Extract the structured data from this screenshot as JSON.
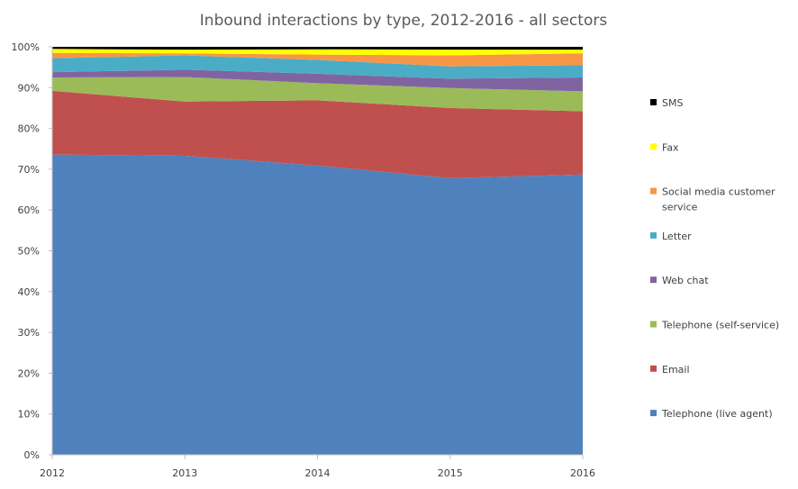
{
  "chart_data": {
    "type": "area",
    "stacked": true,
    "title": "Inbound interactions by type, 2012-2016 - all sectors",
    "x": [
      "2012",
      "2013",
      "2014",
      "2015",
      "2016"
    ],
    "y_tick_labels": [
      "0%",
      "10%",
      "20%",
      "30%",
      "40%",
      "50%",
      "60%",
      "70%",
      "80%",
      "90%",
      "100%"
    ],
    "ylim": [
      0,
      100
    ],
    "grid": false,
    "legend_position": "right",
    "series": [
      {
        "name": "Telephone (live agent)",
        "color": "#4f81bd",
        "values": [
          73.6,
          73.3,
          70.9,
          67.8,
          68.7
        ]
      },
      {
        "name": "Email",
        "color": "#c0504d",
        "values": [
          15.6,
          13.3,
          16.0,
          17.2,
          15.5
        ]
      },
      {
        "name": "Telephone (self-service)",
        "color": "#9bbb59",
        "values": [
          3.3,
          6.0,
          4.2,
          4.9,
          4.9
        ]
      },
      {
        "name": "Web chat",
        "color": "#8064a2",
        "values": [
          1.3,
          1.8,
          2.3,
          2.3,
          3.4
        ]
      },
      {
        "name": "Letter",
        "color": "#4bacc6",
        "values": [
          3.4,
          3.5,
          3.4,
          3.0,
          3.0
        ]
      },
      {
        "name": "Social media customer service",
        "color": "#f79646",
        "values": [
          1.3,
          0.5,
          1.3,
          2.7,
          2.9
        ]
      },
      {
        "name": "Fax",
        "color": "#ffff00",
        "values": [
          1.0,
          0.9,
          1.3,
          1.4,
          0.9
        ]
      },
      {
        "name": "SMS",
        "color": "#000000",
        "values": [
          0.5,
          0.7,
          0.6,
          0.7,
          0.7
        ]
      }
    ]
  }
}
